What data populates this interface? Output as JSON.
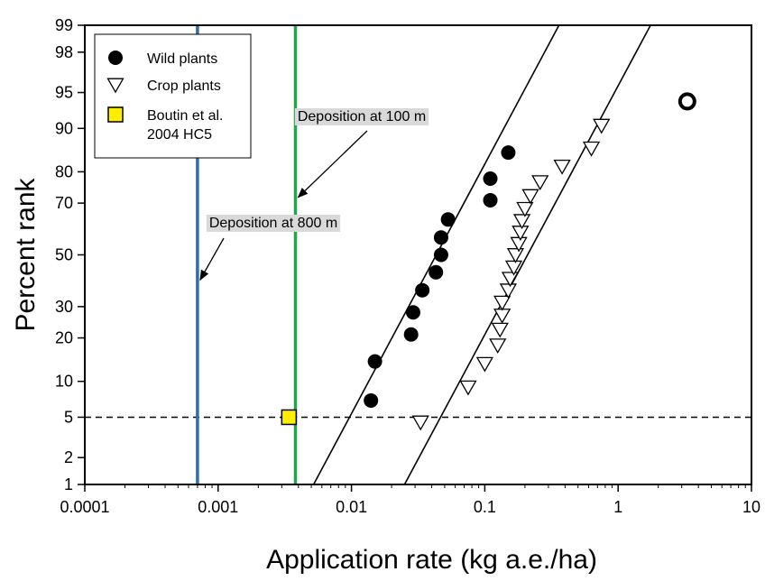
{
  "chart_data": {
    "type": "scatter",
    "xlabel": "Application rate (kg a.e./ha)",
    "ylabel": "Percent rank",
    "x_scale": "log",
    "y_scale": "probit",
    "xlim": [
      0.0001,
      10
    ],
    "ylim": [
      1,
      99
    ],
    "x_ticks": [
      {
        "value": 0.0001,
        "label": "0.0001"
      },
      {
        "value": 0.001,
        "label": "0.001"
      },
      {
        "value": 0.01,
        "label": "0.01"
      },
      {
        "value": 0.1,
        "label": "0.1"
      },
      {
        "value": 1,
        "label": "1"
      },
      {
        "value": 10,
        "label": "10"
      }
    ],
    "y_ticks": [
      {
        "value": 1,
        "label": "1"
      },
      {
        "value": 2,
        "label": "2"
      },
      {
        "value": 5,
        "label": "5"
      },
      {
        "value": 10,
        "label": "10"
      },
      {
        "value": 20,
        "label": "20"
      },
      {
        "value": 30,
        "label": "30"
      },
      {
        "value": 50,
        "label": "50"
      },
      {
        "value": 70,
        "label": "70"
      },
      {
        "value": 80,
        "label": "80"
      },
      {
        "value": 90,
        "label": "90"
      },
      {
        "value": 95,
        "label": "95"
      },
      {
        "value": 98,
        "label": "98"
      },
      {
        "value": 99,
        "label": "99"
      }
    ],
    "grid": false,
    "legend": {
      "position": "top-left",
      "entries": [
        {
          "label": "Wild plants",
          "marker": "filled-circle"
        },
        {
          "label": "Crop plants",
          "marker": "open-down-triangle"
        },
        {
          "label": "Boutin et al.",
          "label2": "2004 HC5",
          "marker": "yellow-square"
        }
      ]
    },
    "series": [
      {
        "name": "Wild plants",
        "marker": "filled-circle",
        "points": [
          {
            "x": 0.014,
            "y": 7
          },
          {
            "x": 0.015,
            "y": 14
          },
          {
            "x": 0.028,
            "y": 21
          },
          {
            "x": 0.029,
            "y": 28
          },
          {
            "x": 0.034,
            "y": 36
          },
          {
            "x": 0.043,
            "y": 43
          },
          {
            "x": 0.047,
            "y": 50
          },
          {
            "x": 0.047,
            "y": 57
          },
          {
            "x": 0.053,
            "y": 64
          },
          {
            "x": 0.11,
            "y": 71
          },
          {
            "x": 0.11,
            "y": 78
          },
          {
            "x": 0.15,
            "y": 85
          }
        ]
      },
      {
        "name": "Crop plants",
        "marker": "open-down-triangle",
        "points": [
          {
            "x": 0.033,
            "y": 4.5
          },
          {
            "x": 0.075,
            "y": 9
          },
          {
            "x": 0.1,
            "y": 13.5
          },
          {
            "x": 0.125,
            "y": 18
          },
          {
            "x": 0.13,
            "y": 22.5
          },
          {
            "x": 0.135,
            "y": 27
          },
          {
            "x": 0.135,
            "y": 31.5
          },
          {
            "x": 0.15,
            "y": 36
          },
          {
            "x": 0.155,
            "y": 40.5
          },
          {
            "x": 0.165,
            "y": 45
          },
          {
            "x": 0.17,
            "y": 50
          },
          {
            "x": 0.18,
            "y": 54.5
          },
          {
            "x": 0.185,
            "y": 59
          },
          {
            "x": 0.19,
            "y": 63.5
          },
          {
            "x": 0.2,
            "y": 68
          },
          {
            "x": 0.22,
            "y": 72.5
          },
          {
            "x": 0.26,
            "y": 77
          },
          {
            "x": 0.38,
            "y": 81.5
          },
          {
            "x": 0.63,
            "y": 86
          },
          {
            "x": 0.75,
            "y": 90.5
          }
        ]
      },
      {
        "name": "Boutin et al. 2004 HC5",
        "marker": "yellow-square",
        "points": [
          {
            "x": 0.0034,
            "y": 5
          }
        ]
      },
      {
        "marker": "open-circle-bold",
        "points": [
          {
            "x": 3.3,
            "y": 94
          }
        ]
      }
    ],
    "fit_lines": [
      {
        "for": "Wild plants",
        "x1": 0.0052,
        "y1": 1,
        "x2": 0.36,
        "y2": 99
      },
      {
        "for": "Crop plants",
        "x1": 0.025,
        "y1": 1,
        "x2": 1.75,
        "y2": 99
      }
    ],
    "reference_lines": [
      {
        "orientation": "horizontal",
        "y": 5,
        "style": "dashed",
        "color": "#000000"
      },
      {
        "orientation": "vertical",
        "x": 0.0007,
        "style": "solid",
        "color": "#2a6fb3",
        "annotation": "Deposition at 800 m",
        "arrow_to_y": 40
      },
      {
        "orientation": "vertical",
        "x": 0.0038,
        "style": "solid",
        "color": "#1fa84a",
        "annotation": "Deposition at 100 m",
        "arrow_to_y": 72
      }
    ],
    "colors": {
      "square_fill": "#ffee00",
      "annotation_bg": "#d9d9d9"
    }
  }
}
